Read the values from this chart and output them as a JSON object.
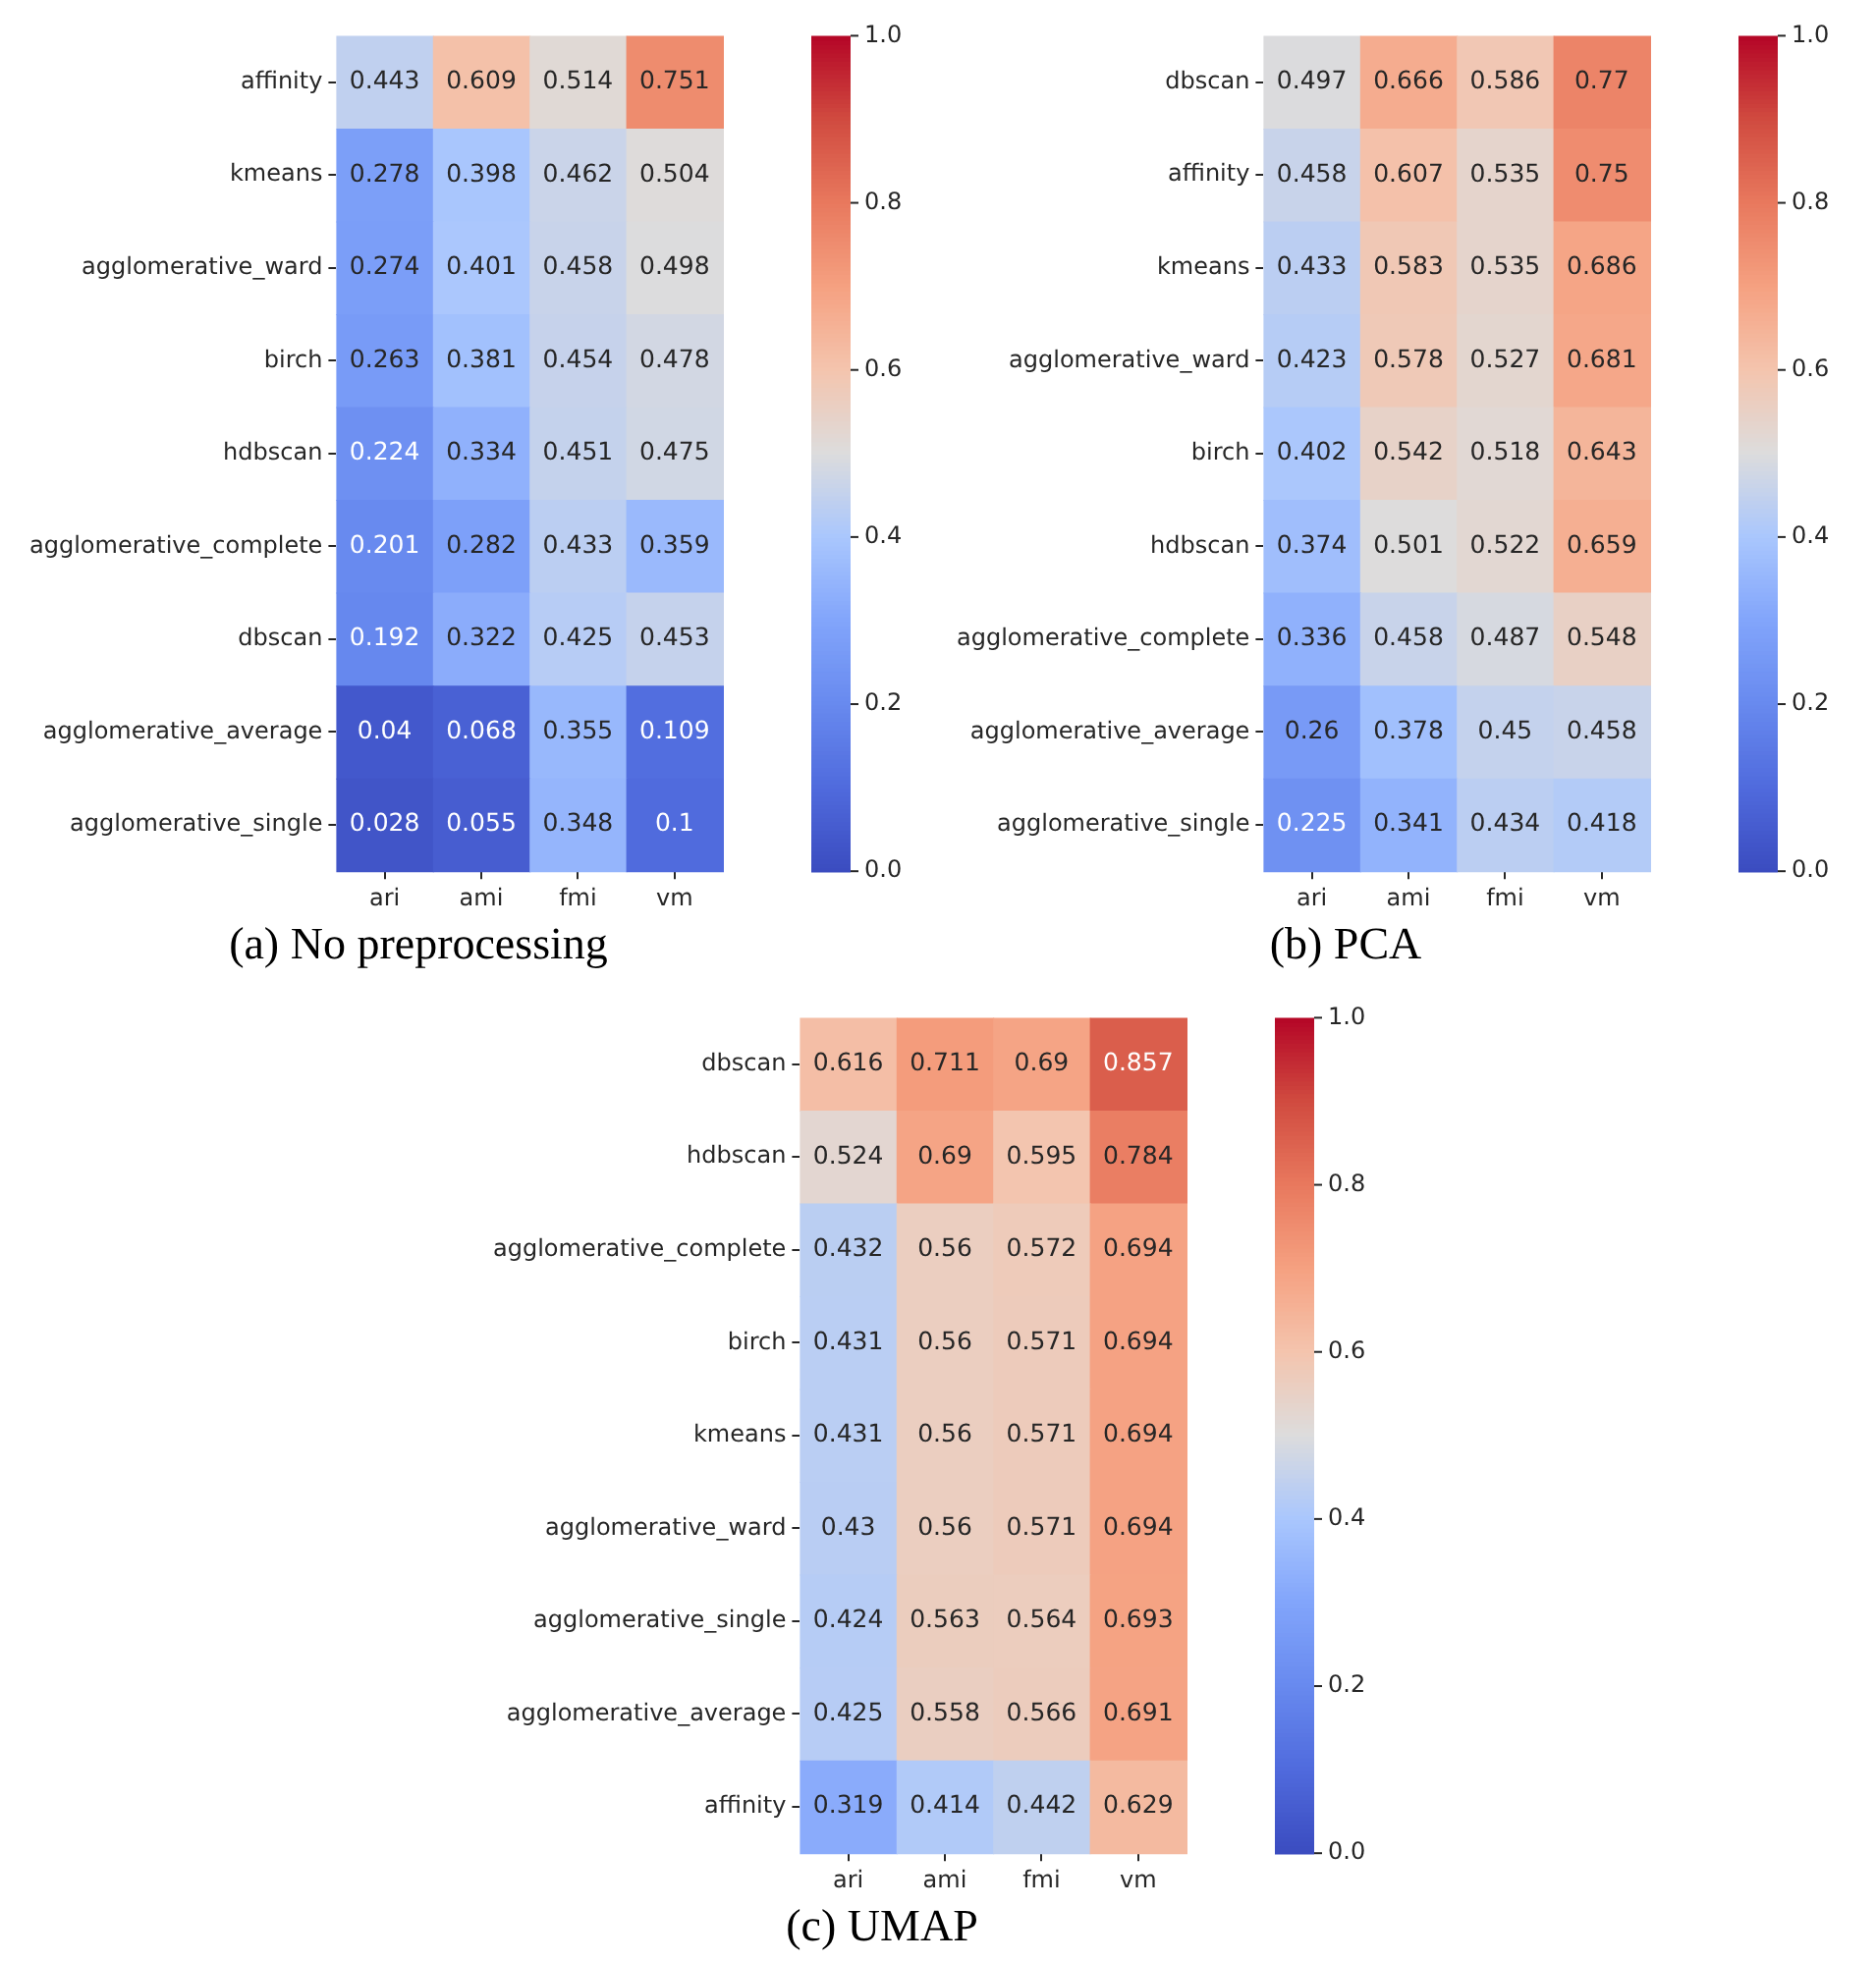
{
  "chart_data": [
    {
      "type": "heatmap",
      "title": "(a) No preprocessing",
      "categories": [
        "ari",
        "ami",
        "fmi",
        "vm"
      ],
      "y_categories": [
        "affinity",
        "kmeans",
        "agglomerative_ward",
        "birch",
        "hdbscan",
        "agglomerative_complete",
        "dbscan",
        "agglomerative_average",
        "agglomerative_single"
      ],
      "cells": [
        [
          0.443,
          0.609,
          0.514,
          0.751
        ],
        [
          0.278,
          0.398,
          0.462,
          0.504
        ],
        [
          0.274,
          0.401,
          0.458,
          0.498
        ],
        [
          0.263,
          0.381,
          0.454,
          0.478
        ],
        [
          0.224,
          0.334,
          0.451,
          0.475
        ],
        [
          0.201,
          0.282,
          0.433,
          0.359
        ],
        [
          0.192,
          0.322,
          0.425,
          0.453
        ],
        [
          0.04,
          0.068,
          0.355,
          0.109
        ],
        [
          0.028,
          0.055,
          0.348,
          0.1
        ]
      ],
      "clim": [
        0,
        1
      ],
      "cticks": [
        {
          "value": 0,
          "label": "0.0"
        },
        {
          "value": 0.2,
          "label": "0.2"
        },
        {
          "value": 0.4,
          "label": "0.4"
        },
        {
          "value": 0.6,
          "label": "0.6"
        },
        {
          "value": 0.8,
          "label": "0.8"
        },
        {
          "value": 1,
          "label": "1.0"
        }
      ],
      "data_labels": true
    },
    {
      "type": "heatmap",
      "title": "(b) PCA",
      "categories": [
        "ari",
        "ami",
        "fmi",
        "vm"
      ],
      "y_categories": [
        "dbscan",
        "affinity",
        "kmeans",
        "agglomerative_ward",
        "birch",
        "hdbscan",
        "agglomerative_complete",
        "agglomerative_average",
        "agglomerative_single"
      ],
      "cells": [
        [
          0.497,
          0.666,
          0.586,
          0.77
        ],
        [
          0.458,
          0.607,
          0.535,
          0.75
        ],
        [
          0.433,
          0.583,
          0.535,
          0.686
        ],
        [
          0.423,
          0.578,
          0.527,
          0.681
        ],
        [
          0.402,
          0.542,
          0.518,
          0.643
        ],
        [
          0.374,
          0.501,
          0.522,
          0.659
        ],
        [
          0.336,
          0.458,
          0.487,
          0.548
        ],
        [
          0.26,
          0.378,
          0.45,
          0.458
        ],
        [
          0.225,
          0.341,
          0.434,
          0.418
        ]
      ],
      "clim": [
        0,
        1
      ],
      "cticks": [
        {
          "value": 0,
          "label": "0.0"
        },
        {
          "value": 0.2,
          "label": "0.2"
        },
        {
          "value": 0.4,
          "label": "0.4"
        },
        {
          "value": 0.6,
          "label": "0.6"
        },
        {
          "value": 0.8,
          "label": "0.8"
        },
        {
          "value": 1,
          "label": "1.0"
        }
      ],
      "data_labels": true
    },
    {
      "type": "heatmap",
      "title": "(c) UMAP",
      "categories": [
        "ari",
        "ami",
        "fmi",
        "vm"
      ],
      "y_categories": [
        "dbscan",
        "hdbscan",
        "agglomerative_complete",
        "birch",
        "kmeans",
        "agglomerative_ward",
        "agglomerative_single",
        "agglomerative_average",
        "affinity"
      ],
      "cells": [
        [
          0.616,
          0.711,
          0.69,
          0.857
        ],
        [
          0.524,
          0.69,
          0.595,
          0.784
        ],
        [
          0.432,
          0.56,
          0.572,
          0.694
        ],
        [
          0.431,
          0.56,
          0.571,
          0.694
        ],
        [
          0.431,
          0.56,
          0.571,
          0.694
        ],
        [
          0.43,
          0.56,
          0.571,
          0.694
        ],
        [
          0.424,
          0.563,
          0.564,
          0.693
        ],
        [
          0.425,
          0.558,
          0.566,
          0.691
        ],
        [
          0.319,
          0.414,
          0.442,
          0.629
        ]
      ],
      "clim": [
        0,
        1
      ],
      "cticks": [
        {
          "value": 0,
          "label": "0.0"
        },
        {
          "value": 0.2,
          "label": "0.2"
        },
        {
          "value": 0.4,
          "label": "0.4"
        },
        {
          "value": 0.6,
          "label": "0.6"
        },
        {
          "value": 0.8,
          "label": "0.8"
        },
        {
          "value": 1,
          "label": "1.0"
        }
      ],
      "data_labels": true
    }
  ]
}
